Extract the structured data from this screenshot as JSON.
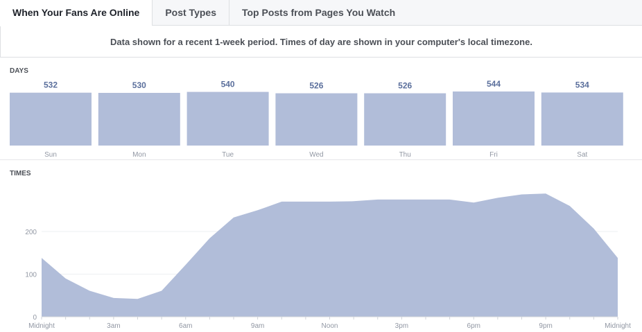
{
  "tabs": [
    {
      "label": "When Your Fans Are Online",
      "active": true
    },
    {
      "label": "Post Types",
      "active": false
    },
    {
      "label": "Top Posts from Pages You Watch",
      "active": false
    }
  ],
  "notice": "Data shown for a recent 1-week period. Times of day are shown in your computer's local timezone.",
  "colors": {
    "bar": "#b1bdd9",
    "area": "#b1bdd9",
    "value_label": "#5b6f9c",
    "axis_text": "#9197a3",
    "grid": "#eeeff2"
  },
  "chart_data": [
    {
      "type": "bar",
      "title": "DAYS",
      "categories": [
        "Sun",
        "Mon",
        "Tue",
        "Wed",
        "Thu",
        "Fri",
        "Sat"
      ],
      "values": [
        532,
        530,
        540,
        526,
        526,
        544,
        534
      ],
      "data_labels": true
    },
    {
      "type": "area",
      "title": "TIMES",
      "x_labels": [
        "Midnight",
        "3am",
        "6am",
        "9am",
        "Noon",
        "3pm",
        "6pm",
        "9pm",
        "Midnight"
      ],
      "x_tick_hours": [
        0,
        3,
        6,
        9,
        12,
        15,
        18,
        21,
        24
      ],
      "x": [
        0,
        1,
        2,
        3,
        4,
        5,
        6,
        7,
        8,
        9,
        10,
        11,
        12,
        13,
        14,
        15,
        16,
        17,
        18,
        19,
        20,
        21,
        22,
        23,
        24
      ],
      "values": [
        138,
        90,
        61,
        44,
        42,
        61,
        122,
        184,
        233,
        250,
        270,
        270,
        270,
        271,
        275,
        275,
        275,
        275,
        268,
        279,
        287,
        289,
        260,
        207,
        138
      ],
      "ylim": [
        0,
        300
      ],
      "y_ticks": [
        0,
        100,
        200
      ],
      "grid": true
    }
  ]
}
